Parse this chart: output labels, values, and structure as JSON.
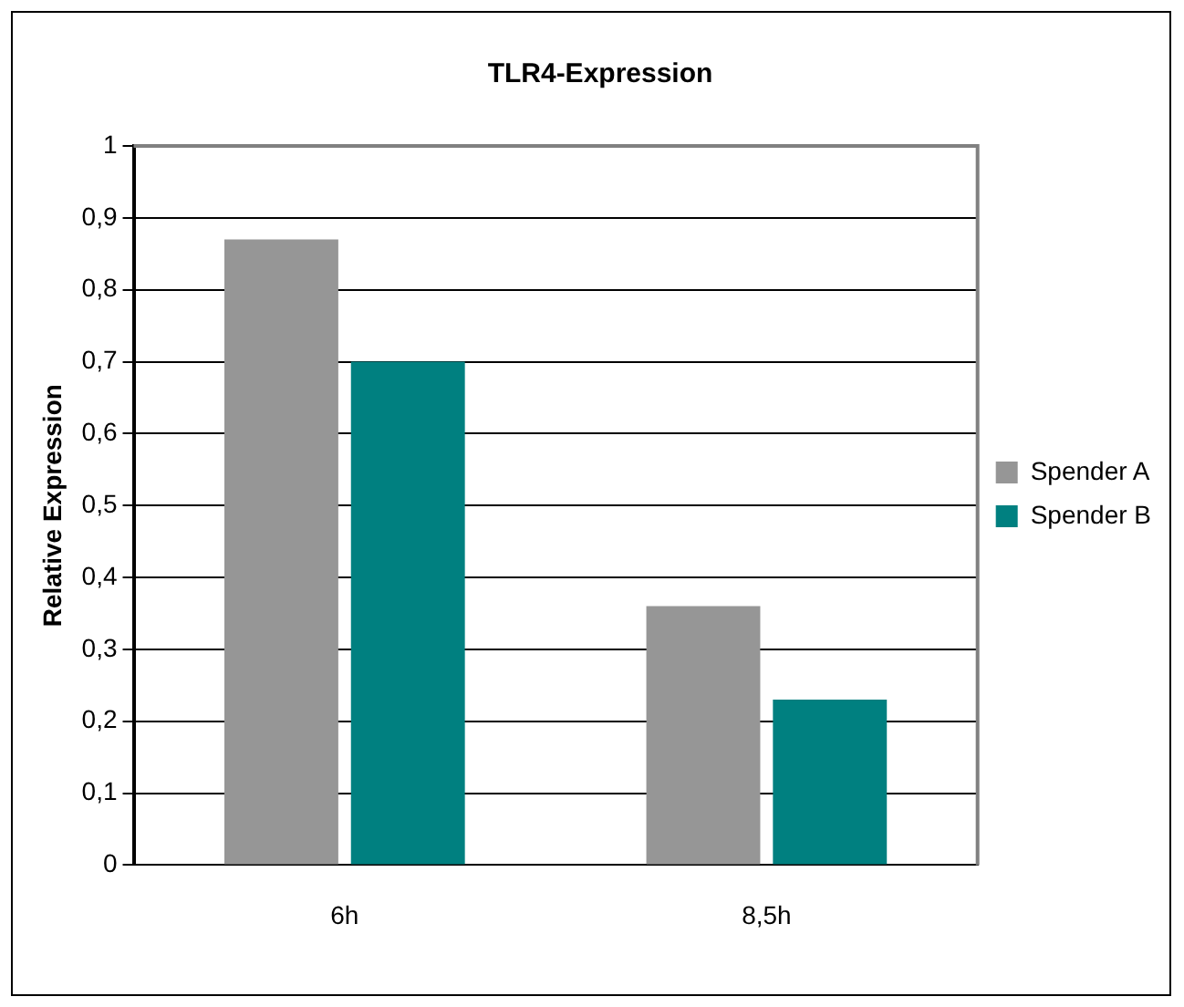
{
  "chart_data": {
    "type": "bar",
    "title": "TLR4-Expression",
    "ylabel": "Relative Expression",
    "categories": [
      "6h",
      "8,5h"
    ],
    "series": [
      {
        "name": "Spender A",
        "color": "#969696",
        "values": [
          0.87,
          0.36
        ]
      },
      {
        "name": "Spender B",
        "color": "#008080",
        "values": [
          0.7,
          0.23
        ]
      }
    ],
    "ylim": [
      0,
      1
    ],
    "yticks": [
      0,
      {
        "value": 0.1,
        "label": "0,1"
      },
      {
        "value": 0.2,
        "label": "0,2"
      },
      {
        "value": 0.3,
        "label": "0,3"
      },
      {
        "value": 0.4,
        "label": "0,4"
      },
      {
        "value": 0.5,
        "label": "0,5"
      },
      {
        "value": 0.6,
        "label": "0,6"
      },
      {
        "value": 0.7,
        "label": "0,7"
      },
      {
        "value": 0.8,
        "label": "0,8"
      },
      {
        "value": 0.9,
        "label": "0,9"
      },
      1
    ],
    "grid": "y",
    "legend": "right"
  }
}
